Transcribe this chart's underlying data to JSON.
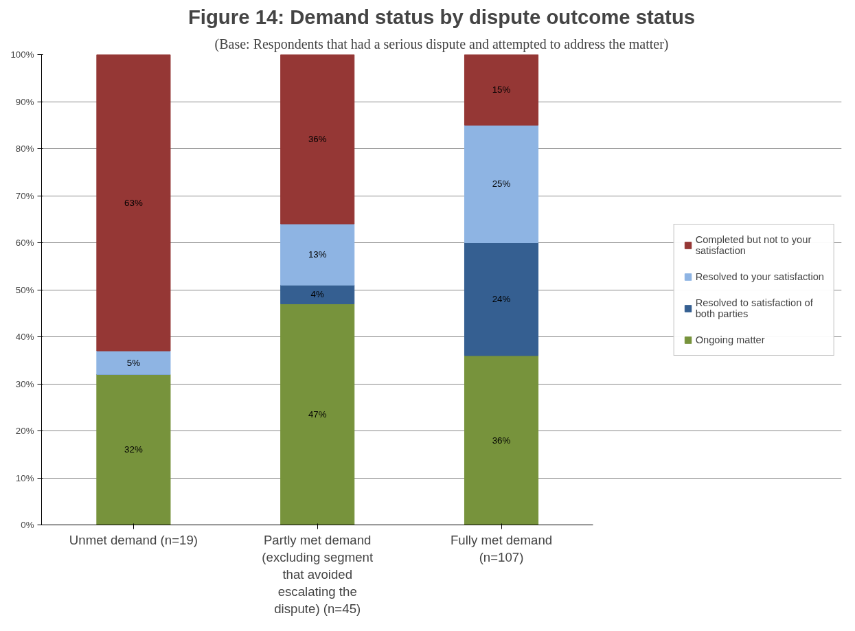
{
  "chart_data": {
    "type": "bar",
    "stacked": true,
    "title": "Figure 14: Demand status by dispute outcome status",
    "subtitle": "(Base: Respondents that had a serious dispute and attempted to address the matter)",
    "categories": [
      "Unmet demand (n=19)",
      "Partly met demand (excluding segment that avoided escalating the dispute) (n=45)",
      "Fully met demand (n=107)"
    ],
    "series": [
      {
        "name": "Ongoing matter",
        "color": "#77933c",
        "values": [
          32,
          47,
          36
        ],
        "value_labels": [
          "32%",
          "47%",
          "36%"
        ]
      },
      {
        "name": "Resolved to satisfaction of both parties",
        "color": "#355f91",
        "values": [
          0,
          4,
          24
        ],
        "value_labels": [
          null,
          "4%",
          "24%"
        ]
      },
      {
        "name": "Resolved to your satisfaction",
        "color": "#8eb4e3",
        "values": [
          5,
          13,
          25
        ],
        "value_labels": [
          "5%",
          "13%",
          "25%"
        ]
      },
      {
        "name": "Completed but not to your satisfaction",
        "color": "#953735",
        "values": [
          63,
          36,
          15
        ],
        "value_labels": [
          "63%",
          "36%",
          "15%"
        ]
      }
    ],
    "ylim": [
      0,
      100
    ],
    "yticks": [
      {
        "value": 0,
        "label": "0%"
      },
      {
        "value": 10,
        "label": "10%"
      },
      {
        "value": 20,
        "label": "20%"
      },
      {
        "value": 30,
        "label": "30%"
      },
      {
        "value": 40,
        "label": "40%"
      },
      {
        "value": 50,
        "label": "50%"
      },
      {
        "value": 60,
        "label": "60%"
      },
      {
        "value": 70,
        "label": "70%"
      },
      {
        "value": 80,
        "label": "80%"
      },
      {
        "value": 90,
        "label": "90%"
      },
      {
        "value": 100,
        "label": "100%"
      }
    ],
    "grid": "y",
    "legend": "right"
  }
}
